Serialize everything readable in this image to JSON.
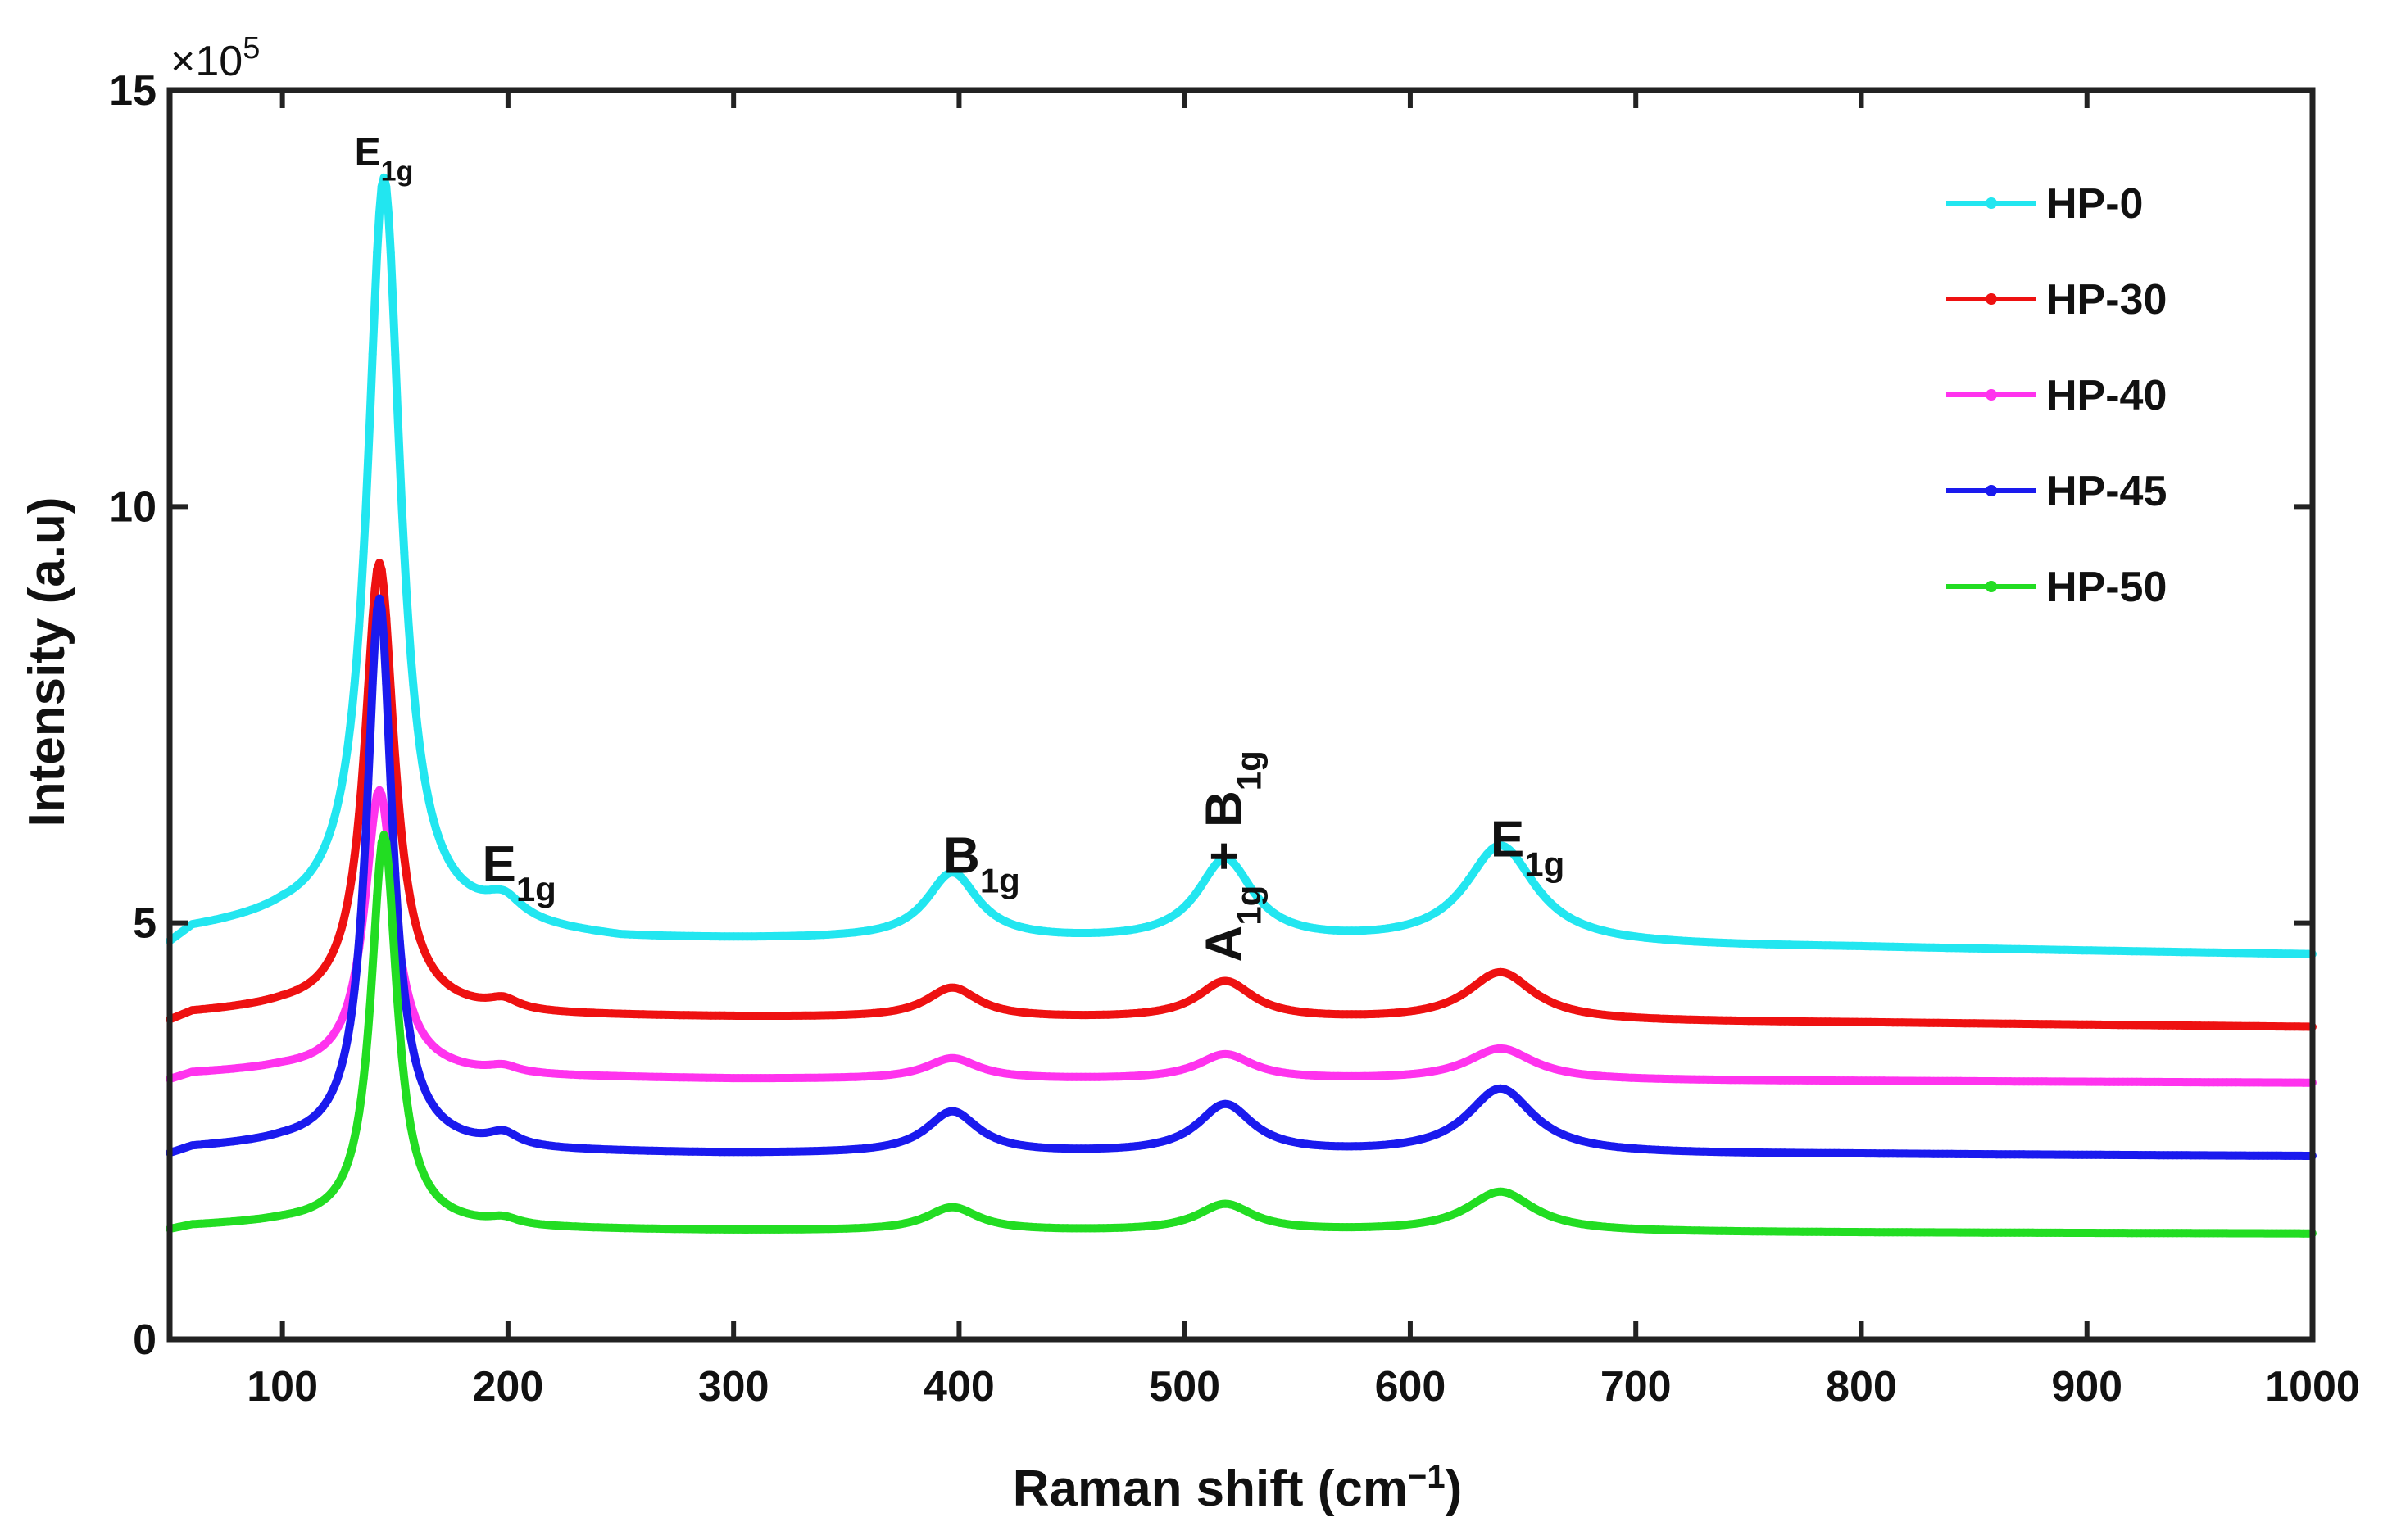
{
  "chart_data": {
    "type": "line",
    "title": "",
    "xlabel": "Raman shift (cm⁻¹)",
    "xlabel_main": "Raman shift (cm",
    "xlabel_sup": "−1",
    "xlabel_close": ")",
    "ylabel": "Intensity (a.u)",
    "xlim": [
      50,
      1000
    ],
    "ylim": [
      0,
      15
    ],
    "y_multiplier": "×10",
    "y_multiplier_exp": "5",
    "xticks": [
      100,
      200,
      300,
      400,
      500,
      600,
      700,
      800,
      900,
      1000
    ],
    "xtick_labels": [
      "100",
      "200",
      "300",
      "400",
      "500",
      "600",
      "700",
      "800",
      "900",
      "1000"
    ],
    "yticks": [
      0,
      5,
      10,
      15
    ],
    "ytick_labels": [
      "0",
      "5",
      "10",
      "15"
    ],
    "grid": false,
    "legend_position": "top-right",
    "series": [
      {
        "name": "HP-0",
        "color": "#22e6f0",
        "baseline": [
          [
            50,
            4.7
          ],
          [
            60,
            4.88
          ],
          [
            100,
            4.98
          ],
          [
            200,
            4.88
          ],
          [
            250,
            4.78
          ],
          [
            350,
            4.78
          ],
          [
            800,
            4.7
          ],
          [
            1000,
            4.62
          ]
        ],
        "peaks": [
          [
            145,
            9.0,
            9
          ],
          [
            198,
            0.25,
            10
          ],
          [
            397,
            0.8,
            14
          ],
          [
            518,
            0.98,
            15
          ],
          [
            640,
            1.18,
            19
          ]
        ]
      },
      {
        "name": "HP-30",
        "color": "#ee1111",
        "baseline": [
          [
            50,
            3.8
          ],
          [
            60,
            3.9
          ],
          [
            100,
            3.95
          ],
          [
            200,
            3.88
          ],
          [
            300,
            3.86
          ],
          [
            800,
            3.8
          ],
          [
            1000,
            3.75
          ]
        ],
        "peaks": [
          [
            143,
            5.4,
            8
          ],
          [
            198,
            0.12,
            8
          ],
          [
            397,
            0.36,
            14
          ],
          [
            518,
            0.45,
            15
          ],
          [
            640,
            0.58,
            18
          ]
        ]
      },
      {
        "name": "HP-40",
        "color": "#ff33ee",
        "baseline": [
          [
            50,
            3.1
          ],
          [
            60,
            3.18
          ],
          [
            100,
            3.22
          ],
          [
            200,
            3.15
          ],
          [
            300,
            3.12
          ],
          [
            800,
            3.1
          ],
          [
            1000,
            3.08
          ]
        ],
        "peaks": [
          [
            143,
            3.4,
            8
          ],
          [
            198,
            0.08,
            8
          ],
          [
            397,
            0.25,
            14
          ],
          [
            518,
            0.3,
            15
          ],
          [
            640,
            0.38,
            18
          ]
        ]
      },
      {
        "name": "HP-45",
        "color": "#1a1aee",
        "baseline": [
          [
            50,
            2.2
          ],
          [
            60,
            2.28
          ],
          [
            100,
            2.32
          ],
          [
            200,
            2.25
          ],
          [
            300,
            2.22
          ],
          [
            800,
            2.22
          ],
          [
            1000,
            2.2
          ]
        ],
        "peaks": [
          [
            143,
            6.6,
            7
          ],
          [
            198,
            0.15,
            8
          ],
          [
            397,
            0.5,
            14
          ],
          [
            518,
            0.58,
            15
          ],
          [
            640,
            0.78,
            18
          ]
        ]
      },
      {
        "name": "HP-50",
        "color": "#22dd22",
        "baseline": [
          [
            50,
            1.3
          ],
          [
            60,
            1.35
          ],
          [
            100,
            1.38
          ],
          [
            200,
            1.32
          ],
          [
            300,
            1.3
          ],
          [
            800,
            1.28
          ],
          [
            1000,
            1.27
          ]
        ],
        "peaks": [
          [
            145,
            4.7,
            7
          ],
          [
            198,
            0.08,
            8
          ],
          [
            397,
            0.28,
            14
          ],
          [
            518,
            0.32,
            15
          ],
          [
            640,
            0.48,
            18
          ]
        ]
      }
    ],
    "annotations": [
      {
        "label": "E",
        "sub": "1g",
        "x": 145,
        "y": 14.1,
        "rotate": false,
        "small": true
      },
      {
        "label": "E",
        "sub": "1g",
        "x": 205,
        "y": 5.5,
        "rotate": false,
        "small": false
      },
      {
        "label": "B",
        "sub": "1g",
        "x": 410,
        "y": 5.6,
        "rotate": false,
        "small": false
      },
      {
        "label": "A",
        "sub": "1g",
        "label2": " + B",
        "sub2": "1g",
        "x": 525,
        "y": 5.8,
        "rotate": true,
        "small": false
      },
      {
        "label": "E",
        "sub": "1g",
        "x": 652,
        "y": 5.8,
        "rotate": false,
        "small": false
      }
    ]
  }
}
